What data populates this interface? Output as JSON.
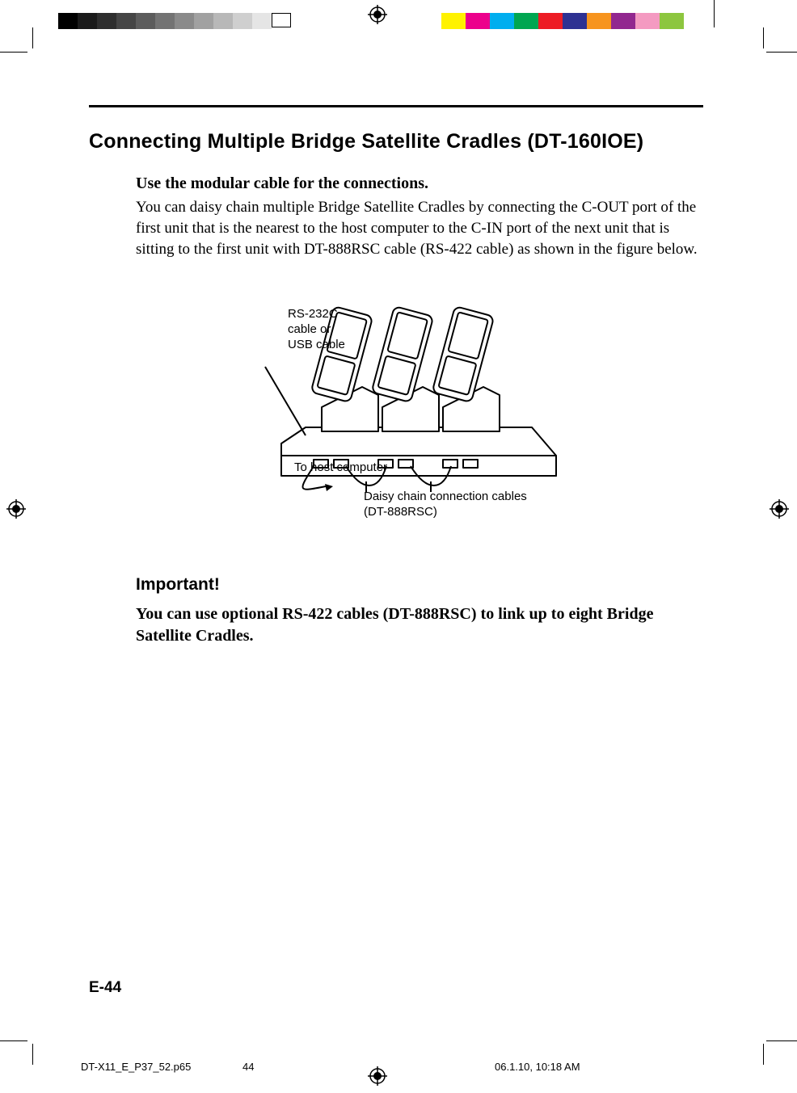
{
  "colorbar": {
    "left_swatches": [
      "#000000",
      "#1a1a1a",
      "#2e2e2e",
      "#454545",
      "#5c5c5c",
      "#737373",
      "#8a8a8a",
      "#a1a1a1",
      "#b8b8b8",
      "#cfcfcf",
      "#e5e5e5",
      "#ffffff"
    ],
    "right_swatches": [
      "#fff200",
      "#ec008c",
      "#00aeef",
      "#00a651",
      "#ed1c24",
      "#2e3192",
      "#f7941d",
      "#92278f",
      "#f49ac1",
      "#8dc63f"
    ]
  },
  "title": "Connecting Multiple Bridge Satellite Cradles (DT-160IOE)",
  "lead": "Use the modular cable for the connections.",
  "paragraph": "You can daisy chain multiple Bridge Satellite Cradles by connecting the C-OUT port of the first unit that is the nearest to the host computer to the C-IN port of the next unit that is sitting to the first unit with DT-888RSC cable (RS-422 cable) as shown in the figure below.",
  "figure": {
    "label_cable": "RS-232C\ncable or\nUSB cable",
    "label_host": "To host computer",
    "label_daisy": "Daisy chain connection cables\n(DT-888RSC)"
  },
  "important_heading": "Important!",
  "important_body": "You can use optional RS-422 cables (DT-888RSC) to link up to eight Bridge Satellite Cradles.",
  "page_number": "E-44",
  "footer": {
    "filename": "DT-X11_E_P37_52.p65",
    "folio": "44",
    "date": "06.1.10, 10:18 AM"
  }
}
